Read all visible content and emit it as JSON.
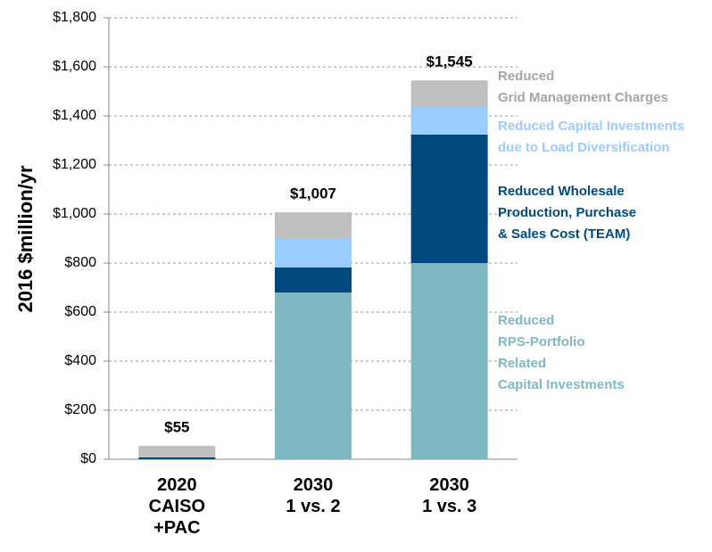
{
  "chart_data": {
    "type": "stacked_bar",
    "ylabel": "2016 $million/yr",
    "categories": [
      "2020\nCAISO\n+PAC",
      "2030\n1 vs. 2",
      "2030\n1 vs. 3"
    ],
    "series": [
      {
        "name": "Reduced\nRPS-Portfolio\nRelated\nCapital Investments",
        "color": "#7fb8c2",
        "values": [
          0,
          680,
          800
        ]
      },
      {
        "name": "Reduced Wholesale\nProduction, Purchase\n& Sales Cost (TEAM)",
        "color": "#004a80",
        "values": [
          8,
          102,
          524
        ]
      },
      {
        "name": "Reduced Capital Investments\ndue to Load Diversification",
        "color": "#99ccff",
        "values": [
          0,
          120,
          116
        ]
      },
      {
        "name": "Reduced\nGrid Management Charges",
        "color": "#bfbfbf",
        "values": [
          47,
          105,
          105
        ]
      }
    ],
    "totals": [
      55,
      1007,
      1545
    ],
    "total_labels": [
      "$55",
      "$1,007",
      "$1,545"
    ],
    "ylim": [
      0,
      1800
    ],
    "yticks": [
      {
        "value": 0,
        "label": "$0"
      },
      {
        "value": 200,
        "label": "$200"
      },
      {
        "value": 400,
        "label": "$400"
      },
      {
        "value": 600,
        "label": "$600"
      },
      {
        "value": 800,
        "label": "$800"
      },
      {
        "value": 1000,
        "label": "$1,000"
      },
      {
        "value": 1200,
        "label": "$1,200"
      },
      {
        "value": 1400,
        "label": "$1,400"
      },
      {
        "value": 1600,
        "label": "$1,600"
      },
      {
        "value": 1800,
        "label": "$1,800"
      }
    ],
    "grid": true
  }
}
